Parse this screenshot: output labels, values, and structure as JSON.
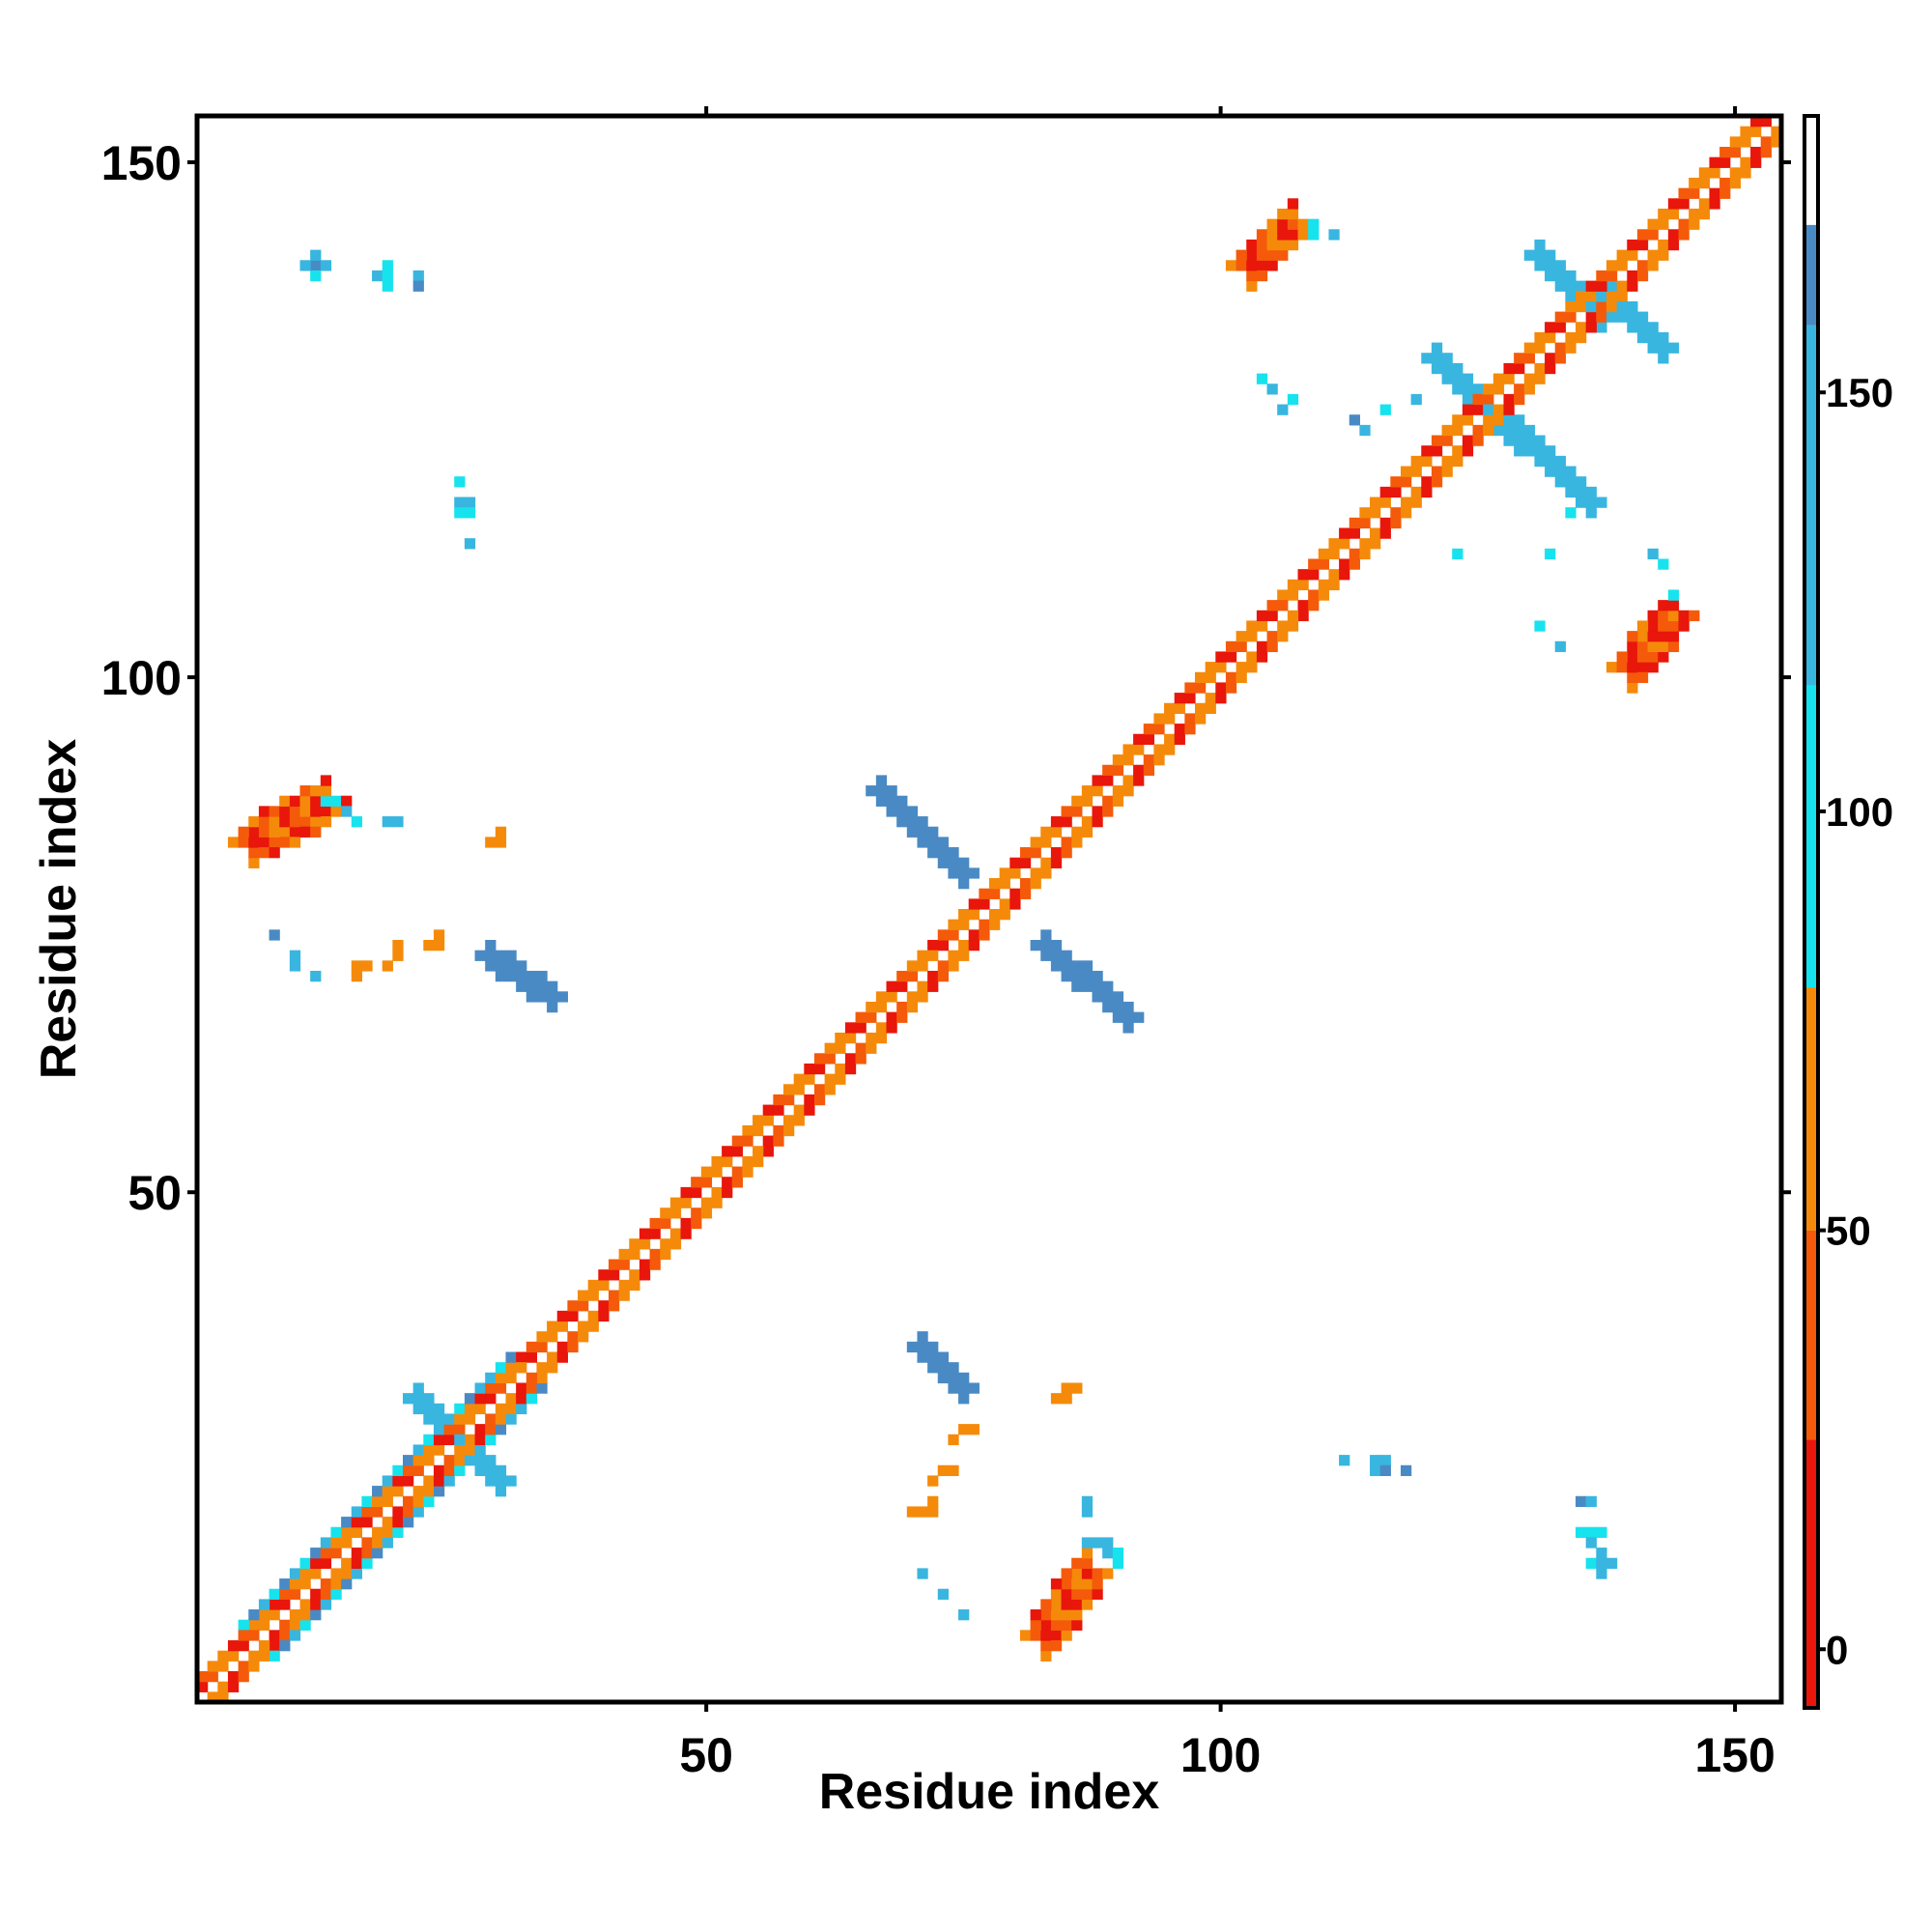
{
  "chart_data": {
    "type": "heatmap",
    "title": "",
    "xlabel": "Residue index",
    "ylabel": "Residue index",
    "xlim": [
      1,
      154
    ],
    "ylim": [
      1,
      154
    ],
    "x_ticks": [
      50,
      100,
      150
    ],
    "y_ticks": [
      50,
      100,
      150
    ],
    "grid": false,
    "colorbar": {
      "range": [
        -7,
        183
      ],
      "ticks": [
        0,
        50,
        100,
        150
      ],
      "stops": [
        {
          "from": -7,
          "to": 25,
          "color": "#e8160b"
        },
        {
          "from": 25,
          "to": 50,
          "color": "#f45a0a"
        },
        {
          "from": 50,
          "to": 79,
          "color": "#f58a0a"
        },
        {
          "from": 79,
          "to": 115,
          "color": "#17e3ee"
        },
        {
          "from": 115,
          "to": 158,
          "color": "#38b6df"
        },
        {
          "from": 158,
          "to": 170,
          "color": "#4a8ac4"
        },
        {
          "from": 170,
          "to": 183,
          "color": "#ffffff"
        }
      ]
    },
    "palette": {
      "red": "#e8160b",
      "orange_red": "#f45a0a",
      "orange": "#f58a0a",
      "cyan": "#17e3ee",
      "sky": "#38b6df",
      "steel": "#4a8ac4"
    },
    "diagonal": {
      "from": 1,
      "to": 154,
      "pattern": [
        "#f58a0a",
        "#e8160b",
        "#f45a0a",
        "#f58a0a"
      ]
    },
    "strands": [
      {
        "x": [
          8,
          31
        ],
        "y": [
          8,
          31
        ],
        "half_width": 3,
        "colors": [
          "#17e3ee",
          "#4a8ac4",
          "#38b6df"
        ]
      },
      {
        "x": [
          34,
          48
        ],
        "y": [
          34,
          48
        ],
        "half_width": 2,
        "colors": [
          "#17e3ee",
          "#f58a0a",
          "#38b6df"
        ]
      },
      {
        "x": [
          56,
          66
        ],
        "y": [
          56,
          66
        ],
        "half_width": 2,
        "colors": [
          "#17e3ee",
          "#f58a0a"
        ]
      },
      {
        "x": [
          74,
          83
        ],
        "y": [
          74,
          83
        ],
        "half_width": 2,
        "colors": [
          "#17e3ee",
          "#38b6df"
        ]
      },
      {
        "x": [
          108,
          121
        ],
        "y": [
          108,
          121
        ],
        "half_width": 2,
        "colors": [
          "#17e3ee",
          "#38b6df",
          "#f58a0a"
        ]
      }
    ],
    "segments": [
      {
        "x": [
          67,
          75
        ],
        "y": [
          89,
          81
        ],
        "half_width": 1,
        "color": "#4a8ac4"
      },
      {
        "x": [
          83,
          91
        ],
        "y": [
          74,
          67
        ],
        "half_width": 1,
        "color": "#4a8ac4"
      },
      {
        "x": [
          22,
          30
        ],
        "y": [
          30,
          22
        ],
        "half_width": 1,
        "color": "#38b6df"
      },
      {
        "x": [
          121,
          129
        ],
        "y": [
          131,
          123
        ],
        "half_width": 1,
        "color": "#38b6df"
      },
      {
        "x": [
          129,
          136
        ],
        "y": [
          124,
          117
        ],
        "half_width": 1,
        "color": "#38b6df"
      },
      {
        "x": [
          131,
          137
        ],
        "y": [
          141,
          135
        ],
        "half_width": 1,
        "color": "#38b6df"
      },
      {
        "x": [
          138,
          143
        ],
        "y": [
          137,
          132
        ],
        "half_width": 1,
        "color": "#38b6df"
      },
      {
        "x": [
          29,
          35
        ],
        "y": [
          73,
          69
        ],
        "half_width": 1,
        "color": "#4a8ac4"
      },
      {
        "x": [
          71,
          75
        ],
        "y": [
          35,
          31
        ],
        "half_width": 1,
        "color": "#4a8ac4"
      }
    ],
    "blobs": [
      {
        "x": [
          6,
          13
        ],
        "y": [
          84,
          88
        ],
        "half_width": 2,
        "colors": [
          "#e8160b",
          "#f45a0a",
          "#f58a0a"
        ]
      },
      {
        "x": [
          83,
          87
        ],
        "y": [
          7,
          13
        ],
        "half_width": 2,
        "colors": [
          "#e8160b",
          "#f45a0a",
          "#f58a0a"
        ]
      },
      {
        "x": [
          103,
          107
        ],
        "y": [
          140,
          144
        ],
        "half_width": 2,
        "colors": [
          "#e8160b",
          "#f45a0a",
          "#f58a0a"
        ]
      },
      {
        "x": [
          140,
          144
        ],
        "y": [
          101,
          106
        ],
        "half_width": 2,
        "colors": [
          "#e8160b",
          "#f45a0a",
          "#f58a0a"
        ]
      }
    ],
    "cells": [
      {
        "x": 13,
        "y": 88,
        "color": "#17e3ee"
      },
      {
        "x": 14,
        "y": 88,
        "color": "#17e3ee"
      },
      {
        "x": 15,
        "y": 87,
        "color": "#38b6df"
      },
      {
        "x": 16,
        "y": 86,
        "color": "#17e3ee"
      },
      {
        "x": 19,
        "y": 86,
        "color": "#38b6df"
      },
      {
        "x": 20,
        "y": 86,
        "color": "#38b6df"
      },
      {
        "x": 29,
        "y": 84,
        "color": "#f58a0a"
      },
      {
        "x": 30,
        "y": 85,
        "color": "#f58a0a"
      },
      {
        "x": 30,
        "y": 84,
        "color": "#f58a0a"
      },
      {
        "x": 8,
        "y": 75,
        "color": "#4a8ac4"
      },
      {
        "x": 10,
        "y": 73,
        "color": "#38b6df"
      },
      {
        "x": 10,
        "y": 72,
        "color": "#38b6df"
      },
      {
        "x": 12,
        "y": 71,
        "color": "#38b6df"
      },
      {
        "x": 16,
        "y": 72,
        "color": "#f58a0a"
      },
      {
        "x": 16,
        "y": 71,
        "color": "#f58a0a"
      },
      {
        "x": 17,
        "y": 72,
        "color": "#f58a0a"
      },
      {
        "x": 19,
        "y": 72,
        "color": "#f58a0a"
      },
      {
        "x": 20,
        "y": 73,
        "color": "#f58a0a"
      },
      {
        "x": 20,
        "y": 74,
        "color": "#f58a0a"
      },
      {
        "x": 23,
        "y": 74,
        "color": "#f58a0a"
      },
      {
        "x": 24,
        "y": 74,
        "color": "#f58a0a"
      },
      {
        "x": 24,
        "y": 75,
        "color": "#f58a0a"
      },
      {
        "x": 12,
        "y": 140,
        "color": "#4a8ac4"
      },
      {
        "x": 13,
        "y": 140,
        "color": "#38b6df"
      },
      {
        "x": 12,
        "y": 139,
        "color": "#17e3ee"
      },
      {
        "x": 11,
        "y": 140,
        "color": "#38b6df"
      },
      {
        "x": 12,
        "y": 141,
        "color": "#38b6df"
      },
      {
        "x": 18,
        "y": 139,
        "color": "#38b6df"
      },
      {
        "x": 19,
        "y": 139,
        "color": "#17e3ee"
      },
      {
        "x": 19,
        "y": 138,
        "color": "#17e3ee"
      },
      {
        "x": 19,
        "y": 140,
        "color": "#17e3ee"
      },
      {
        "x": 22,
        "y": 139,
        "color": "#38b6df"
      },
      {
        "x": 22,
        "y": 138,
        "color": "#4a8ac4"
      },
      {
        "x": 26,
        "y": 119,
        "color": "#17e3ee"
      },
      {
        "x": 26,
        "y": 117,
        "color": "#38b6df"
      },
      {
        "x": 27,
        "y": 117,
        "color": "#38b6df"
      },
      {
        "x": 26,
        "y": 116,
        "color": "#17e3ee"
      },
      {
        "x": 27,
        "y": 116,
        "color": "#17e3ee"
      },
      {
        "x": 27,
        "y": 113,
        "color": "#38b6df"
      },
      {
        "x": 70,
        "y": 19,
        "color": "#f58a0a"
      },
      {
        "x": 71,
        "y": 19,
        "color": "#f58a0a"
      },
      {
        "x": 72,
        "y": 19,
        "color": "#f58a0a"
      },
      {
        "x": 72,
        "y": 20,
        "color": "#f58a0a"
      },
      {
        "x": 72,
        "y": 22,
        "color": "#f58a0a"
      },
      {
        "x": 73,
        "y": 23,
        "color": "#f58a0a"
      },
      {
        "x": 74,
        "y": 23,
        "color": "#f58a0a"
      },
      {
        "x": 74,
        "y": 26,
        "color": "#f58a0a"
      },
      {
        "x": 75,
        "y": 27,
        "color": "#f58a0a"
      },
      {
        "x": 76,
        "y": 27,
        "color": "#f58a0a"
      },
      {
        "x": 84,
        "y": 30,
        "color": "#f58a0a"
      },
      {
        "x": 85,
        "y": 30,
        "color": "#f58a0a"
      },
      {
        "x": 85,
        "y": 31,
        "color": "#f58a0a"
      },
      {
        "x": 86,
        "y": 31,
        "color": "#f58a0a"
      },
      {
        "x": 71,
        "y": 13,
        "color": "#38b6df"
      },
      {
        "x": 73,
        "y": 11,
        "color": "#38b6df"
      },
      {
        "x": 75,
        "y": 9,
        "color": "#38b6df"
      },
      {
        "x": 87,
        "y": 19,
        "color": "#38b6df"
      },
      {
        "x": 87,
        "y": 20,
        "color": "#38b6df"
      },
      {
        "x": 87,
        "y": 16,
        "color": "#38b6df"
      },
      {
        "x": 88,
        "y": 16,
        "color": "#38b6df"
      },
      {
        "x": 89,
        "y": 16,
        "color": "#38b6df"
      },
      {
        "x": 89,
        "y": 15,
        "color": "#38b6df"
      },
      {
        "x": 90,
        "y": 15,
        "color": "#17e3ee"
      },
      {
        "x": 90,
        "y": 14,
        "color": "#17e3ee"
      },
      {
        "x": 109,
        "y": 144,
        "color": "#17e3ee"
      },
      {
        "x": 109,
        "y": 143,
        "color": "#17e3ee"
      },
      {
        "x": 111,
        "y": 143,
        "color": "#38b6df"
      },
      {
        "x": 113,
        "y": 125,
        "color": "#4a8ac4"
      },
      {
        "x": 114,
        "y": 124,
        "color": "#38b6df"
      },
      {
        "x": 116,
        "y": 126,
        "color": "#17e3ee"
      },
      {
        "x": 119,
        "y": 127,
        "color": "#38b6df"
      },
      {
        "x": 104,
        "y": 129,
        "color": "#17e3ee"
      },
      {
        "x": 105,
        "y": 128,
        "color": "#38b6df"
      },
      {
        "x": 107,
        "y": 127,
        "color": "#17e3ee"
      },
      {
        "x": 106,
        "y": 126,
        "color": "#38b6df"
      },
      {
        "x": 112,
        "y": 24,
        "color": "#38b6df"
      },
      {
        "x": 115,
        "y": 24,
        "color": "#38b6df"
      },
      {
        "x": 116,
        "y": 24,
        "color": "#38b6df"
      },
      {
        "x": 115,
        "y": 23,
        "color": "#38b6df"
      },
      {
        "x": 116,
        "y": 23,
        "color": "#4a8ac4"
      },
      {
        "x": 118,
        "y": 23,
        "color": "#4a8ac4"
      },
      {
        "x": 135,
        "y": 20,
        "color": "#4a8ac4"
      },
      {
        "x": 136,
        "y": 20,
        "color": "#38b6df"
      },
      {
        "x": 135,
        "y": 17,
        "color": "#17e3ee"
      },
      {
        "x": 136,
        "y": 17,
        "color": "#17e3ee"
      },
      {
        "x": 137,
        "y": 17,
        "color": "#17e3ee"
      },
      {
        "x": 136,
        "y": 16,
        "color": "#38b6df"
      },
      {
        "x": 136,
        "y": 14,
        "color": "#17e3ee"
      },
      {
        "x": 137,
        "y": 14,
        "color": "#38b6df"
      },
      {
        "x": 138,
        "y": 14,
        "color": "#38b6df"
      },
      {
        "x": 137,
        "y": 15,
        "color": "#38b6df"
      },
      {
        "x": 137,
        "y": 13,
        "color": "#38b6df"
      },
      {
        "x": 123,
        "y": 112,
        "color": "#17e3ee"
      },
      {
        "x": 132,
        "y": 112,
        "color": "#17e3ee"
      },
      {
        "x": 134,
        "y": 116,
        "color": "#17e3ee"
      },
      {
        "x": 131,
        "y": 105,
        "color": "#17e3ee"
      },
      {
        "x": 133,
        "y": 103,
        "color": "#38b6df"
      },
      {
        "x": 142,
        "y": 112,
        "color": "#38b6df"
      },
      {
        "x": 143,
        "y": 111,
        "color": "#17e3ee"
      },
      {
        "x": 144,
        "y": 108,
        "color": "#17e3ee"
      }
    ]
  }
}
